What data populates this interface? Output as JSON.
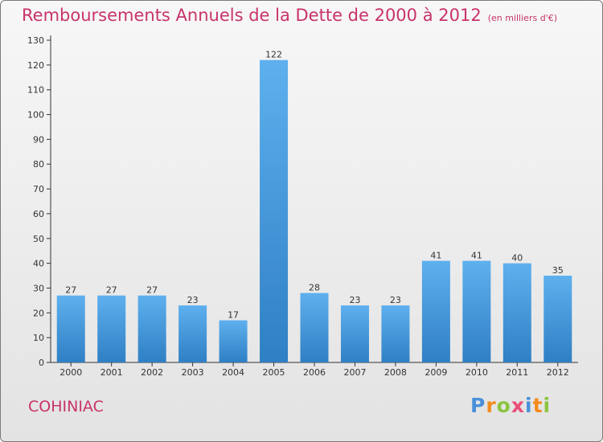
{
  "chart_title": "Remboursements Annuels de la Dette de 2000 à 2012",
  "chart_subtitle": "(en milliers d'€)",
  "city_name": "COHINIAC",
  "logo": {
    "text": "Proxiti",
    "letters": [
      {
        "char": "P",
        "color": "#4a90d9"
      },
      {
        "char": "r",
        "color": "#f28c1e"
      },
      {
        "char": "o",
        "color": "#8bc53f"
      },
      {
        "char": "x",
        "color": "#e94e77"
      },
      {
        "char": "i",
        "color": "#4a90d9"
      },
      {
        "char": "t",
        "color": "#f28c1e"
      },
      {
        "char": "i",
        "color": "#8bc53f"
      }
    ]
  },
  "chart_data": {
    "type": "bar",
    "title": "Remboursements Annuels de la Dette de 2000 à 2012",
    "subtitle": "(en milliers d'€)",
    "categories": [
      "2000",
      "2001",
      "2002",
      "2003",
      "2004",
      "2005",
      "2006",
      "2007",
      "2008",
      "2009",
      "2010",
      "2011",
      "2012"
    ],
    "values": [
      27,
      27,
      27,
      23,
      17,
      122,
      28,
      23,
      23,
      41,
      41,
      40,
      35
    ],
    "ylim": [
      0,
      130
    ],
    "yticks": [
      0,
      10,
      20,
      30,
      40,
      50,
      60,
      70,
      80,
      90,
      100,
      110,
      120,
      130
    ],
    "grid": false,
    "bar_color": "#4a9de0",
    "text_color": "#c8336b"
  }
}
